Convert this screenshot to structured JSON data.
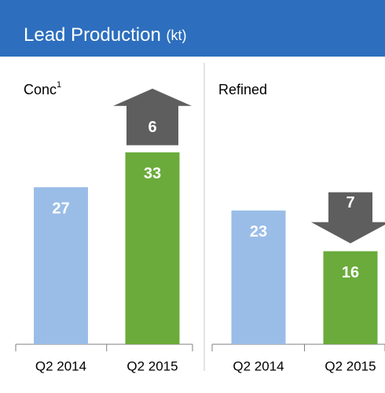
{
  "title": "Lead Production",
  "unit": "(kt)",
  "chart_data": [
    {
      "type": "bar",
      "title": "Conc",
      "footnote": "1",
      "categories": [
        "Q2 2014",
        "Q2 2015"
      ],
      "values": [
        27,
        33
      ],
      "colors": [
        "#9abde8",
        "#6aab3b"
      ],
      "ylim": [
        0,
        40
      ],
      "change": 6,
      "change_direction": "up",
      "change_color": "#5e5e5e"
    },
    {
      "type": "bar",
      "title": "Refined",
      "categories": [
        "Q2 2014",
        "Q2 2015"
      ],
      "values": [
        23,
        16
      ],
      "colors": [
        "#9abde8",
        "#6aab3b"
      ],
      "ylim": [
        0,
        40
      ],
      "change": 7,
      "change_direction": "down",
      "change_color": "#5e5e5e"
    }
  ]
}
